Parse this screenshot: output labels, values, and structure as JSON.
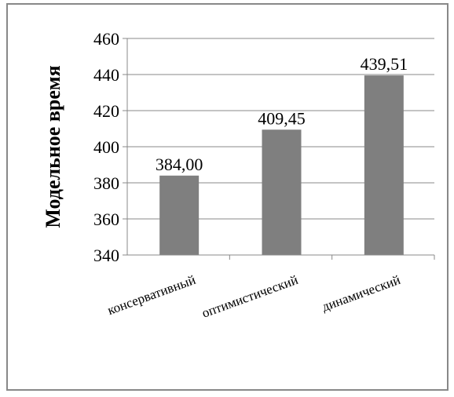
{
  "chart_data": {
    "type": "bar",
    "title": "",
    "xlabel": "",
    "ylabel": "Модельное время",
    "categories": [
      "консервативный",
      "оптимистический",
      "динамический"
    ],
    "values": [
      384.0,
      409.45,
      439.51
    ],
    "data_labels": [
      "384,00",
      "409,45",
      "439,51"
    ],
    "ylim": [
      340,
      460
    ],
    "yticks": [
      340,
      360,
      380,
      400,
      420,
      440,
      460
    ],
    "ytick_labels": [
      "340",
      "360",
      "380",
      "400",
      "420",
      "440",
      "460"
    ],
    "grid": true,
    "legend": "none",
    "bar_color": "#7f7f7f",
    "grid_color": "#888888"
  }
}
